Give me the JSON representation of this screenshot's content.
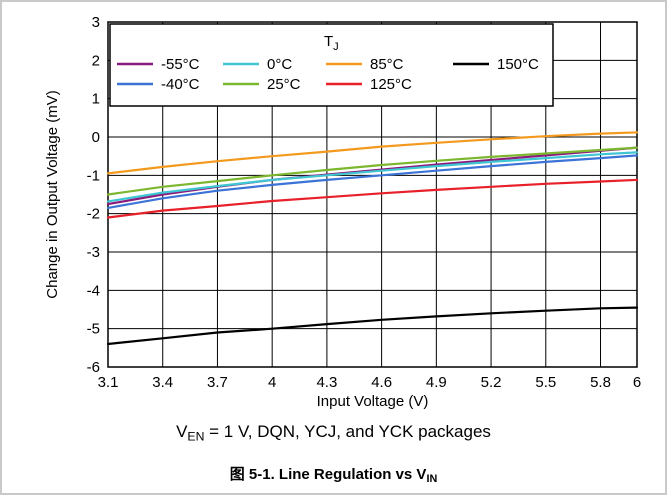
{
  "chart_data": {
    "type": "line",
    "xlabel": "Input Voltage (V)",
    "ylabel": "Change in Output Voltage (mV)",
    "xlim": [
      3.1,
      6
    ],
    "ylim": [
      -6,
      3
    ],
    "x_ticks": [
      "3.1",
      "3.4",
      "3.7",
      "4",
      "4.3",
      "4.6",
      "4.9",
      "5.2",
      "5.5",
      "5.8",
      "6"
    ],
    "y_ticks": [
      "3",
      "2",
      "1",
      "0",
      "-1",
      "-2",
      "-3",
      "-4",
      "-5",
      "-6"
    ],
    "x_tick_values": [
      3.1,
      3.4,
      3.7,
      4.0,
      4.3,
      4.6,
      4.9,
      5.2,
      5.5,
      5.8,
      6.0
    ],
    "y_tick_values": [
      3,
      2,
      1,
      0,
      -1,
      -2,
      -3,
      -4,
      -5,
      -6
    ],
    "grid": true,
    "legend": {
      "title_main": "T",
      "title_sub": "J",
      "placement": "top-right"
    },
    "x": [
      3.1,
      3.4,
      3.7,
      4.0,
      4.3,
      4.6,
      4.9,
      5.2,
      5.5,
      5.8,
      6.0
    ],
    "series": [
      {
        "name": "-55°C",
        "color": "#8b1a7e",
        "values": [
          -1.75,
          -1.5,
          -1.3,
          -1.12,
          -0.98,
          -0.85,
          -0.72,
          -0.6,
          -0.48,
          -0.36,
          -0.28
        ]
      },
      {
        "name": "0°C",
        "color": "#3ec6d2",
        "values": [
          -1.68,
          -1.45,
          -1.28,
          -1.12,
          -1.0,
          -0.88,
          -0.76,
          -0.65,
          -0.55,
          -0.45,
          -0.4
        ]
      },
      {
        "name": "85°C",
        "color": "#f39a1e",
        "values": [
          -0.95,
          -0.78,
          -0.63,
          -0.5,
          -0.38,
          -0.25,
          -0.15,
          -0.06,
          0.02,
          0.09,
          0.12
        ]
      },
      {
        "name": "150°C",
        "color": "#000000",
        "values": [
          -5.4,
          -5.25,
          -5.1,
          -5.0,
          -4.88,
          -4.77,
          -4.68,
          -4.6,
          -4.53,
          -4.47,
          -4.45
        ]
      },
      {
        "name": "-40°C",
        "color": "#3b73d6",
        "values": [
          -1.85,
          -1.6,
          -1.4,
          -1.25,
          -1.12,
          -1.0,
          -0.88,
          -0.76,
          -0.65,
          -0.55,
          -0.48
        ]
      },
      {
        "name": "25°C",
        "color": "#7cb72f",
        "values": [
          -1.5,
          -1.3,
          -1.15,
          -1.0,
          -0.86,
          -0.73,
          -0.62,
          -0.52,
          -0.43,
          -0.34,
          -0.28
        ]
      },
      {
        "name": "125°C",
        "color": "#e8202a",
        "values": [
          -2.1,
          -1.92,
          -1.8,
          -1.67,
          -1.57,
          -1.47,
          -1.38,
          -1.3,
          -1.22,
          -1.16,
          -1.12
        ]
      }
    ]
  },
  "caption": {
    "v": "V",
    "sub": "EN",
    "text": " = 1 V, DQN, YCJ, and YCK packages"
  },
  "figure_title": {
    "text": "图 5-1. Line Regulation vs V",
    "sub": "IN"
  }
}
